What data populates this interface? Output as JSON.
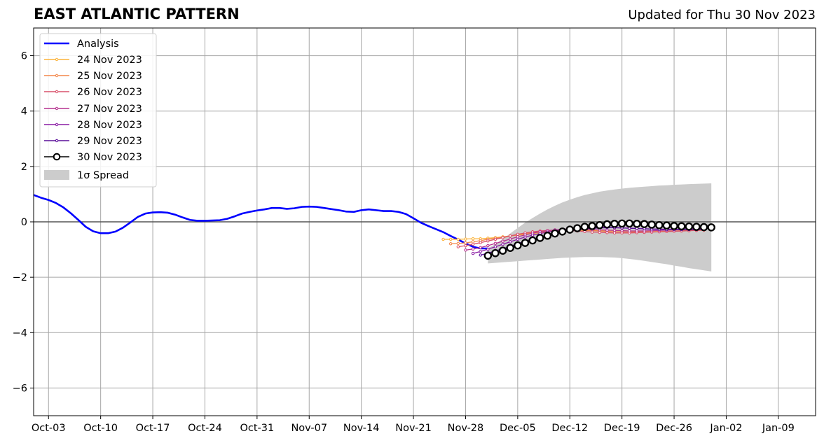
{
  "header": {
    "title": "EAST ATLANTIC PATTERN",
    "updated": "Updated for Thu 30 Nov 2023"
  },
  "chart_data": {
    "type": "line",
    "title": "EAST ATLANTIC PATTERN",
    "subtitle": "Updated for Thu 30 Nov 2023",
    "xlabel": "",
    "ylabel": "",
    "x_range": [
      "2023-10-01",
      "2024-01-14"
    ],
    "ylim": [
      -7,
      7
    ],
    "y_ticks": [
      -6,
      -4,
      -2,
      0,
      2,
      4,
      6
    ],
    "y_tick_labels": [
      "−6",
      "−4",
      "−2",
      "0",
      "2",
      "4",
      "6"
    ],
    "x_ticks": [
      "2023-10-03",
      "2023-10-10",
      "2023-10-17",
      "2023-10-24",
      "2023-10-31",
      "2023-11-07",
      "2023-11-14",
      "2023-11-21",
      "2023-11-28",
      "2023-12-05",
      "2023-12-12",
      "2023-12-19",
      "2023-12-26",
      "2024-01-02",
      "2024-01-09"
    ],
    "x_tick_labels": [
      "Oct-03",
      "Oct-10",
      "Oct-17",
      "Oct-24",
      "Oct-31",
      "Nov-07",
      "Nov-14",
      "Nov-21",
      "Nov-28",
      "Dec-05",
      "Dec-12",
      "Dec-19",
      "Dec-26",
      "Jan-02",
      "Jan-09"
    ],
    "grid": true,
    "legend_position": "top-left",
    "analysis": {
      "name": "Analysis",
      "color": "#0000ff",
      "start": "2023-10-01",
      "values": [
        0.97,
        0.87,
        0.79,
        0.68,
        0.52,
        0.31,
        0.07,
        -0.18,
        -0.34,
        -0.41,
        -0.41,
        -0.35,
        -0.21,
        -0.02,
        0.18,
        0.3,
        0.34,
        0.35,
        0.33,
        0.26,
        0.16,
        0.07,
        0.04,
        0.04,
        0.05,
        0.06,
        0.11,
        0.2,
        0.3,
        0.36,
        0.41,
        0.45,
        0.5,
        0.5,
        0.47,
        0.49,
        0.54,
        0.55,
        0.54,
        0.5,
        0.46,
        0.42,
        0.37,
        0.36,
        0.42,
        0.45,
        0.42,
        0.39,
        0.39,
        0.36,
        0.28,
        0.13,
        -0.03,
        -0.15,
        -0.26,
        -0.37,
        -0.51,
        -0.64,
        -0.78,
        -0.9,
        -0.96,
        -0.96
      ]
    },
    "forecasts": [
      {
        "name": "24 Nov 2023",
        "color": "#fbb33a",
        "start": "2023-11-25",
        "values": [
          -0.63,
          -0.63,
          -0.63,
          -0.62,
          -0.61,
          -0.61,
          -0.59,
          -0.57,
          -0.54,
          -0.51,
          -0.48,
          -0.45,
          -0.42,
          -0.39,
          -0.36,
          -0.34,
          -0.33,
          -0.32,
          -0.31,
          -0.31,
          -0.3,
          -0.3,
          -0.3,
          -0.31,
          -0.32,
          -0.33,
          -0.34,
          -0.34,
          -0.35,
          -0.35,
          -0.35,
          -0.34,
          -0.33,
          -0.32,
          -0.31,
          -0.3
        ]
      },
      {
        "name": "25 Nov 2023",
        "color": "#f3874a",
        "start": "2023-11-26",
        "values": [
          -0.79,
          -0.78,
          -0.76,
          -0.72,
          -0.68,
          -0.63,
          -0.59,
          -0.55,
          -0.51,
          -0.47,
          -0.43,
          -0.39,
          -0.36,
          -0.34,
          -0.32,
          -0.31,
          -0.3,
          -0.3,
          -0.31,
          -0.32,
          -0.33,
          -0.34,
          -0.35,
          -0.36,
          -0.37,
          -0.37,
          -0.37,
          -0.36,
          -0.35,
          -0.34,
          -0.33,
          -0.32,
          -0.31,
          -0.3,
          -0.29
        ]
      },
      {
        "name": "26 Nov 2023",
        "color": "#d9526b",
        "start": "2023-11-27",
        "values": [
          -0.9,
          -0.86,
          -0.81,
          -0.75,
          -0.69,
          -0.63,
          -0.57,
          -0.51,
          -0.45,
          -0.4,
          -0.36,
          -0.33,
          -0.31,
          -0.3,
          -0.3,
          -0.31,
          -0.33,
          -0.35,
          -0.37,
          -0.38,
          -0.39,
          -0.4,
          -0.4,
          -0.4,
          -0.39,
          -0.38,
          -0.37,
          -0.36,
          -0.35,
          -0.34,
          -0.33,
          -0.32,
          -0.31,
          -0.3
        ]
      },
      {
        "name": "27 Nov 2023",
        "color": "#b5318f",
        "start": "2023-11-28",
        "values": [
          -1.02,
          -0.98,
          -0.93,
          -0.86,
          -0.78,
          -0.7,
          -0.62,
          -0.54,
          -0.47,
          -0.41,
          -0.36,
          -0.32,
          -0.29,
          -0.27,
          -0.26,
          -0.26,
          -0.27,
          -0.28,
          -0.29,
          -0.3,
          -0.31,
          -0.32,
          -0.33,
          -0.33,
          -0.33,
          -0.32,
          -0.31,
          -0.3,
          -0.29,
          -0.28,
          -0.27,
          -0.27,
          -0.26
        ]
      },
      {
        "name": "28 Nov 2023",
        "color": "#8a1ba4",
        "start": "2023-11-29",
        "values": [
          -1.14,
          -1.07,
          -0.99,
          -0.9,
          -0.81,
          -0.72,
          -0.63,
          -0.55,
          -0.48,
          -0.42,
          -0.37,
          -0.32,
          -0.28,
          -0.25,
          -0.22,
          -0.2,
          -0.19,
          -0.19,
          -0.2,
          -0.21,
          -0.22,
          -0.23,
          -0.24,
          -0.25,
          -0.26,
          -0.26,
          -0.27,
          -0.27,
          -0.27,
          -0.26,
          -0.26,
          -0.25
        ]
      },
      {
        "name": "29 Nov 2023",
        "color": "#5a0e99",
        "start": "2023-11-30",
        "values": [
          -1.2,
          -1.13,
          -1.05,
          -0.97,
          -0.88,
          -0.79,
          -0.7,
          -0.62,
          -0.55,
          -0.48,
          -0.42,
          -0.37,
          -0.32,
          -0.28,
          -0.25,
          -0.23,
          -0.22,
          -0.21,
          -0.21,
          -0.22,
          -0.23,
          -0.24,
          -0.25,
          -0.26,
          -0.27,
          -0.28,
          -0.28,
          -0.28,
          -0.28,
          -0.28,
          -0.27
        ]
      },
      {
        "name": "30 Nov 2023",
        "color": "#000000",
        "start": "2023-12-01",
        "values": [
          -1.22,
          -1.13,
          -1.04,
          -0.94,
          -0.85,
          -0.76,
          -0.67,
          -0.58,
          -0.5,
          -0.42,
          -0.35,
          -0.28,
          -0.23,
          -0.18,
          -0.15,
          -0.12,
          -0.09,
          -0.07,
          -0.06,
          -0.06,
          -0.07,
          -0.08,
          -0.1,
          -0.12,
          -0.13,
          -0.15,
          -0.16,
          -0.17,
          -0.18,
          -0.19,
          -0.2
        ]
      }
    ],
    "spread": {
      "name": "1σ Spread",
      "color": "#cccccc",
      "start": "2023-12-01",
      "upper": [
        -0.95,
        -0.8,
        -0.62,
        -0.42,
        -0.22,
        -0.03,
        0.14,
        0.3,
        0.45,
        0.58,
        0.7,
        0.8,
        0.89,
        0.97,
        1.03,
        1.09,
        1.13,
        1.17,
        1.2,
        1.23,
        1.25,
        1.27,
        1.29,
        1.31,
        1.32,
        1.34,
        1.35,
        1.36,
        1.37,
        1.38,
        1.39
      ],
      "lower": [
        -1.5,
        -1.48,
        -1.46,
        -1.44,
        -1.42,
        -1.4,
        -1.38,
        -1.36,
        -1.34,
        -1.32,
        -1.3,
        -1.29,
        -1.28,
        -1.27,
        -1.27,
        -1.27,
        -1.28,
        -1.29,
        -1.31,
        -1.34,
        -1.37,
        -1.41,
        -1.45,
        -1.49,
        -1.53,
        -1.58,
        -1.62,
        -1.67,
        -1.71,
        -1.75,
        -1.79
      ]
    }
  }
}
